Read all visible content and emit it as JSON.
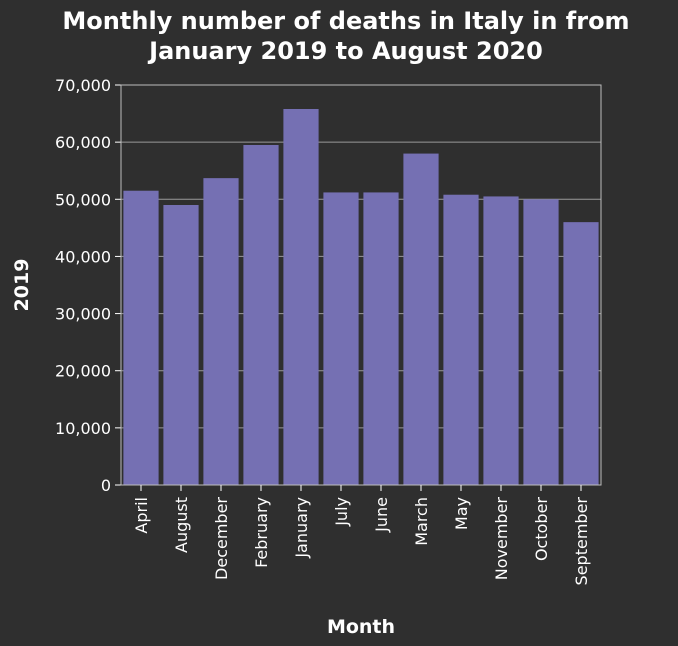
{
  "chart_data": {
    "type": "bar",
    "title_lines": [
      "Monthly number of deaths in Italy in from",
      "January 2019 to August 2020"
    ],
    "xlabel": "Month",
    "ylabel": "2019",
    "categories": [
      "April",
      "August",
      "December",
      "February",
      "January",
      "July",
      "June",
      "March",
      "May",
      "November",
      "October",
      "September"
    ],
    "values": [
      51500,
      49000,
      53700,
      59500,
      65800,
      51200,
      51200,
      58000,
      50800,
      50500,
      50000,
      46000
    ],
    "ylim": [
      0,
      70000
    ],
    "yticks": [
      0,
      10000,
      20000,
      30000,
      40000,
      50000,
      60000,
      70000
    ],
    "ytick_labels": [
      "0",
      "10,000",
      "20,000",
      "30,000",
      "40,000",
      "50,000",
      "60,000",
      "70,000"
    ],
    "grid": true,
    "bar_color": "#7570b3",
    "background_color": "#2f2f2f"
  }
}
